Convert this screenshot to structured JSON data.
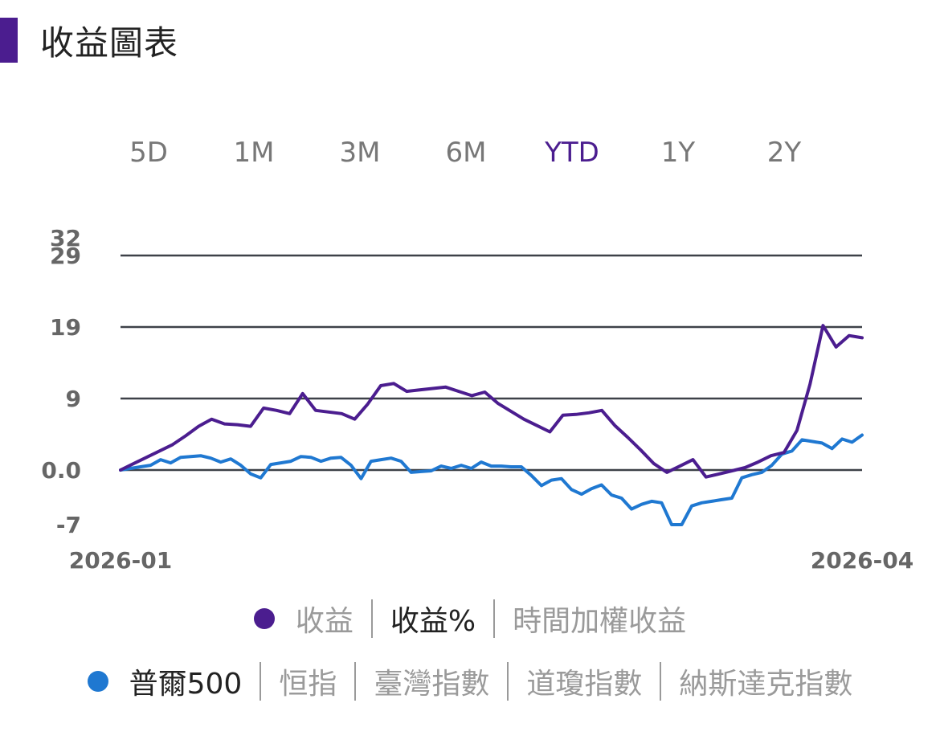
{
  "header": {
    "title": "收益圖表",
    "accent": "#4b1d8f"
  },
  "tabs": {
    "items": [
      "5D",
      "1M",
      "3M",
      "6M",
      "YTD",
      "1Y",
      "2Y"
    ],
    "active": "YTD"
  },
  "legend": {
    "metrics": [
      "收益",
      "收益%",
      "時間加權收益"
    ],
    "metric_selected": "收益%",
    "metric_dot_color": "#4b1d8f",
    "benchmarks": [
      "普爾500",
      "恒指",
      "臺灣指數",
      "道瓊指數",
      "納斯達克指數"
    ],
    "benchmark_selected": "普爾500",
    "benchmark_dot_color": "#1f78d1"
  },
  "chart_data": {
    "type": "line",
    "title": "",
    "x_start_label": "2026-01",
    "x_end_label": "2026-04",
    "y_tick_labels": [
      "32",
      "29",
      "19",
      "9",
      "0.0",
      "-7"
    ],
    "gridlines": [
      29,
      19,
      9,
      0
    ],
    "ylim": [
      -7,
      32
    ],
    "grid": true,
    "series": [
      {
        "name": "收益%",
        "color": "#4b1d8f",
        "values": [
          0,
          0.8,
          1.6,
          2.4,
          3.2,
          4.3,
          5.5,
          6.4,
          5.8,
          5.7,
          5.5,
          7.8,
          7.5,
          7.1,
          9.7,
          7.5,
          7.3,
          7.1,
          6.4,
          8.3,
          10.8,
          11.1,
          10.0,
          10.2,
          10.4,
          10.6,
          10.0,
          9.4,
          9.9,
          8.4,
          7.4,
          6.4,
          5.6,
          4.8,
          6.9,
          7.0,
          7.2,
          7.5,
          5.6,
          4.1,
          2.5,
          0.8,
          -0.3,
          0.5,
          1.3,
          -0.9,
          -0.5,
          -0.1,
          0.3,
          1.0,
          1.8,
          2.2,
          5.0,
          11.0,
          19.2,
          16.2,
          17.8,
          17.5
        ]
      },
      {
        "name": "普爾500",
        "color": "#1f78d1",
        "values": [
          0,
          0.2,
          0.4,
          0.6,
          1.3,
          0.9,
          1.6,
          1.7,
          1.8,
          1.5,
          1.0,
          1.4,
          0.6,
          -0.5,
          -1.0,
          0.7,
          0.9,
          1.1,
          1.7,
          1.6,
          1.1,
          1.5,
          1.6,
          0.6,
          -1.1,
          1.1,
          1.3,
          1.5,
          1.1,
          -0.3,
          -0.2,
          -0.1,
          0.5,
          0.2,
          0.6,
          0.2,
          1.0,
          0.5,
          0.5,
          0.4,
          0.4,
          -0.7,
          -2.0,
          -1.3,
          -1.1,
          -2.5,
          -3.1,
          -2.4,
          -1.9,
          -3.2,
          -3.6,
          -5.0,
          -4.4,
          -4.0,
          -4.2,
          -7.2,
          -7.6,
          -4.6,
          -4.2,
          -4.0,
          -3.8,
          -3.6,
          -1.0,
          -0.6,
          -0.3,
          0.6,
          2.0,
          2.4,
          3.8,
          3.6,
          3.4,
          2.7,
          3.9,
          3.5,
          4.4
        ]
      }
    ]
  }
}
